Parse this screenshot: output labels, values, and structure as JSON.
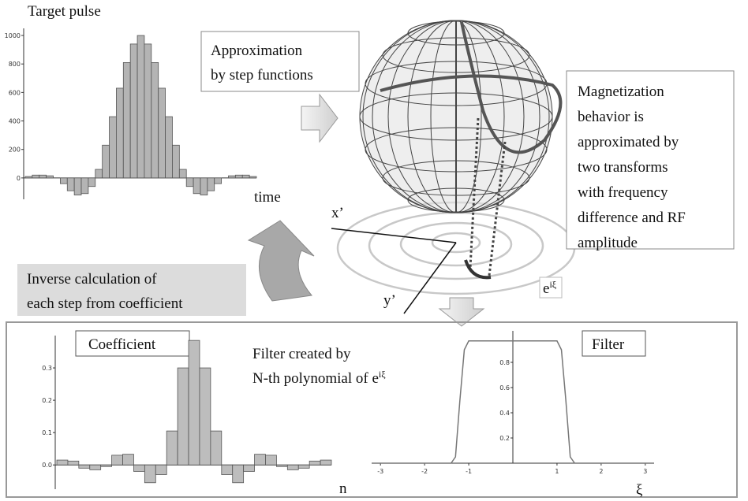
{
  "title_target_pulse": "Target pulse",
  "time_label": "time",
  "approximation_box": [
    "Approximation",
    "by step functions"
  ],
  "magnetization_box": [
    "Magnetization",
    "behavior is",
    "approximated by",
    "two transforms",
    "with frequency",
    "difference and RF",
    "amplitude"
  ],
  "x_prime": "x’",
  "y_prime": "y’",
  "exp_label": {
    "base": "e",
    "sup": "iξ"
  },
  "inverse_box": [
    "Inverse calculation of",
    "each step from coefficient"
  ],
  "coefficient_title": "Coefficient",
  "filter_title": "Filter",
  "filter_text": {
    "line1": "Filter created by",
    "line2": "N-th polynomial of e",
    "sup": "iξ"
  },
  "chart_data": [
    {
      "type": "bar",
      "color": "#b4b4b4",
      "values": [
        10,
        20,
        20,
        15,
        0,
        -40,
        -90,
        -120,
        -110,
        -60,
        60,
        230,
        430,
        630,
        810,
        940,
        1000,
        940,
        810,
        630,
        430,
        230,
        60,
        -60,
        -110,
        -120,
        -90,
        -40,
        0,
        15,
        20,
        20,
        10
      ],
      "ylim": [
        -150,
        1050
      ],
      "yticks": [
        0,
        200,
        400,
        600,
        800,
        1000
      ]
    },
    {
      "type": "bar",
      "color": "#bdbdbd",
      "x_label": "n",
      "values": [
        0.015,
        0.012,
        -0.01,
        -0.015,
        -0.005,
        0.03,
        0.033,
        -0.02,
        -0.055,
        -0.03,
        0.105,
        0.3,
        0.385,
        0.3,
        0.105,
        -0.03,
        -0.055,
        -0.02,
        0.033,
        0.03,
        -0.005,
        -0.015,
        -0.01,
        0.012,
        0.015
      ],
      "ylim": [
        -0.075,
        0.4
      ],
      "yticks": [
        {
          "value": 0,
          "label": "0.0"
        },
        0.1,
        0.2,
        0.3
      ]
    },
    {
      "type": "line",
      "color": "#777777",
      "x_label": "ξ",
      "x": [
        -3.2,
        -1.4,
        -1.3,
        -1.2,
        -1.1,
        -1.0,
        1.0,
        1.1,
        1.2,
        1.3,
        1.4,
        3.2
      ],
      "values": [
        0,
        0,
        0.05,
        0.5,
        0.9,
        0.97,
        0.97,
        0.9,
        0.5,
        0.05,
        0,
        0
      ],
      "xlim": [
        -3.2,
        3.2
      ],
      "ylim": [
        0,
        1.05
      ],
      "xticks": [
        -3,
        -2,
        -1,
        1,
        2,
        3
      ],
      "yticks": [
        0.2,
        0.4,
        0.6,
        0.8
      ]
    }
  ]
}
